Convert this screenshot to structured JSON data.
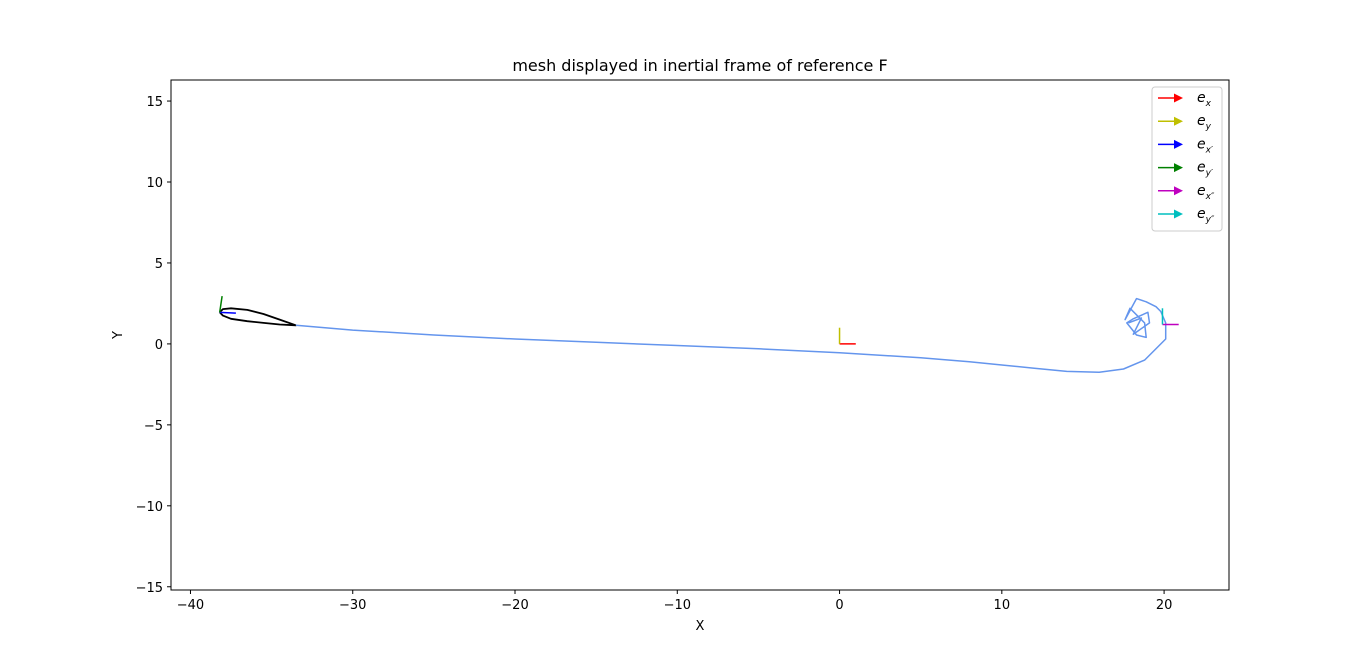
{
  "chart_data": {
    "type": "line",
    "title": "mesh displayed in inertial frame of reference F",
    "xlabel": "X",
    "ylabel": "Y",
    "xlim": [
      -41.2,
      24.0
    ],
    "ylim": [
      -15.2,
      16.3
    ],
    "xticks": [
      -40,
      -30,
      -20,
      -10,
      0,
      10,
      20
    ],
    "yticks": [
      -15,
      -10,
      -5,
      0,
      5,
      10,
      15
    ],
    "xtick_labels": [
      "−40",
      "−30",
      "−20",
      "−10",
      "0",
      "10",
      "20"
    ],
    "ytick_labels": [
      "−15",
      "−10",
      "−5",
      "0",
      "5",
      "10",
      "15"
    ],
    "grid": false,
    "legend_position": "upper right",
    "legend": [
      {
        "base": "e",
        "sub": "x",
        "color": "#ff0000"
      },
      {
        "base": "e",
        "sub": "y",
        "color": "#bfbf00"
      },
      {
        "base": "e",
        "sub": "x′",
        "color": "#0000ff"
      },
      {
        "base": "e",
        "sub": "y′",
        "color": "#008000"
      },
      {
        "base": "e",
        "sub": "x″",
        "color": "#bf00bf"
      },
      {
        "base": "e",
        "sub": "y″",
        "color": "#00bfbf"
      }
    ],
    "series": [
      {
        "role": "airfoil",
        "color": "#000000",
        "x": [
          -38.2,
          -38.0,
          -37.5,
          -36.5,
          -35.5,
          -34.5,
          -33.5,
          -34.5,
          -35.5,
          -36.5,
          -37.5,
          -38.0,
          -38.2
        ],
        "y": [
          1.95,
          2.15,
          2.2,
          2.1,
          1.85,
          1.5,
          1.15,
          1.2,
          1.3,
          1.4,
          1.55,
          1.75,
          1.95
        ]
      },
      {
        "role": "wake",
        "color": "#6495ed",
        "x": [
          -33.5,
          -30,
          -25,
          -20,
          -15,
          -10,
          -5,
          0,
          5,
          8,
          10,
          12,
          14,
          16,
          17.5,
          18.8,
          19.6,
          20.1,
          20.1,
          19.8,
          19.5,
          18.9,
          18.3,
          17.6,
          17.9,
          18.8,
          18.9,
          18.3,
          17.7,
          18.1,
          19.0,
          19.1,
          18.1,
          18.6,
          17.8
        ],
        "y": [
          1.15,
          0.85,
          0.55,
          0.3,
          0.1,
          -0.1,
          -0.3,
          -0.55,
          -0.85,
          -1.1,
          -1.3,
          -1.5,
          -1.7,
          -1.75,
          -1.55,
          -1.0,
          -0.2,
          0.3,
          1.3,
          2.0,
          2.3,
          2.6,
          2.8,
          1.5,
          2.2,
          1.3,
          0.4,
          0.55,
          1.3,
          1.55,
          1.95,
          1.3,
          0.6,
          1.6,
          1.3
        ]
      }
    ],
    "frames": [
      {
        "name": "e_x",
        "color": "#ff0000",
        "x": [
          0,
          1
        ],
        "y": [
          0,
          0
        ]
      },
      {
        "name": "e_y",
        "color": "#bfbf00",
        "x": [
          0,
          0
        ],
        "y": [
          0,
          1
        ]
      },
      {
        "name": "e_x'",
        "color": "#0000ff",
        "x": [
          -38.2,
          -37.2
        ],
        "y": [
          1.95,
          1.9
        ]
      },
      {
        "name": "e_y'",
        "color": "#008000",
        "x": [
          -38.2,
          -38.05
        ],
        "y": [
          1.95,
          2.95
        ]
      },
      {
        "name": "e_x''",
        "color": "#bf00bf",
        "x": [
          19.9,
          20.9
        ],
        "y": [
          1.2,
          1.2
        ]
      },
      {
        "name": "e_y''",
        "color": "#00bfbf",
        "x": [
          19.9,
          19.9
        ],
        "y": [
          1.2,
          2.2
        ]
      }
    ]
  }
}
